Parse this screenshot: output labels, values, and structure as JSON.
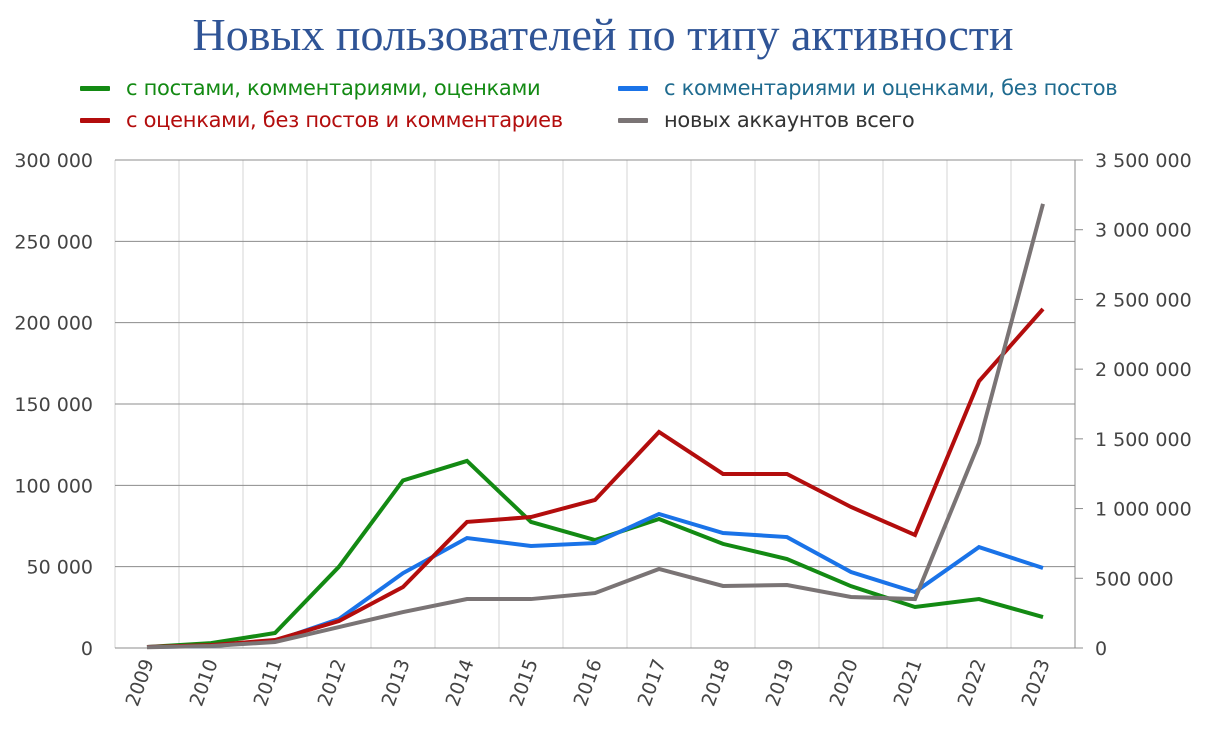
{
  "chart_data": {
    "type": "line",
    "title": "Новых пользователей по типу активности",
    "categories": [
      "2009",
      "2010",
      "2011",
      "2012",
      "2013",
      "2014",
      "2015",
      "2016",
      "2017",
      "2018",
      "2019",
      "2020",
      "2021",
      "2022",
      "2023"
    ],
    "left_axis": {
      "ylim": [
        0,
        300000
      ],
      "ticks": [
        "0",
        "50 000",
        "100 000",
        "150 000",
        "200 000",
        "250 000",
        "300 000"
      ]
    },
    "right_axis": {
      "ylim": [
        0,
        3500000
      ],
      "ticks": [
        "0",
        "500 000",
        "1 000 000",
        "1 500 000",
        "2 000 000",
        "2 500 000",
        "3 000 000",
        "3 500 000"
      ]
    },
    "grid": true,
    "legend_position": "top",
    "series": [
      {
        "name": "с постами, комментариями, оценками",
        "color": "#138a13",
        "text_color": "#138a13",
        "axis": "left",
        "values": [
          600,
          3000,
          9200,
          50000,
          103000,
          115000,
          77500,
          66400,
          79300,
          64000,
          54700,
          38000,
          25200,
          30100,
          19000
        ]
      },
      {
        "name": "с комментариями и оценками, без постов",
        "color": "#1a73e8",
        "text_color": "#1f6b8f",
        "axis": "left",
        "values": [
          600,
          1200,
          4300,
          17800,
          46000,
          67600,
          62700,
          64500,
          82400,
          70700,
          68200,
          46700,
          34400,
          62000,
          49200
        ]
      },
      {
        "name": "с оценками, без постов и комментариев",
        "color": "#b30d0d",
        "text_color": "#b30d0d",
        "axis": "left",
        "values": [
          600,
          1800,
          4900,
          16600,
          37500,
          77500,
          80500,
          91000,
          132800,
          107000,
          107000,
          86700,
          69500,
          164000,
          208400
        ]
      },
      {
        "name": "новых аккаунтов всего",
        "color": "#7a7475",
        "text_color": "#333333",
        "axis": "right",
        "values": [
          5000,
          14000,
          43000,
          150000,
          258000,
          351000,
          351000,
          394000,
          567000,
          445000,
          452000,
          366000,
          351000,
          1470000,
          3185000
        ]
      }
    ]
  }
}
